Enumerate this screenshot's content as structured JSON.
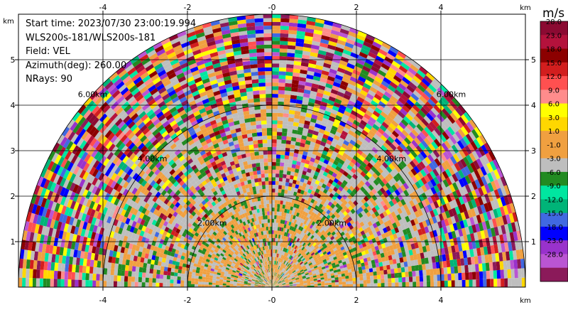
{
  "info": {
    "start_time": "Start time: 2023/07/30 23:00:19.994",
    "instrument": "WLS200s-181/WLS200s-181",
    "field": "Field: VEL",
    "azimuth": "Azimuth(deg): 260.00",
    "nrays": "NRays: 90"
  },
  "colorbar": {
    "unit": "m/s",
    "levels": [
      "28.0",
      "23.0",
      "18.0",
      "15.0",
      "12.0",
      "9.0",
      "6.0",
      "3.0",
      "1.0",
      "-1.0",
      "-3.0",
      "-6.0",
      "-9.0",
      "-12.0",
      "-15.0",
      "-18.0",
      "-23.0",
      "-28.0"
    ],
    "colors": [
      "#8b0a32",
      "#b4123c",
      "#8c0000",
      "#d21e1e",
      "#ff5050",
      "#ff8c8c",
      "#ffff00",
      "#ffd700",
      "#f0a040",
      "#f0a040",
      "#bebebe",
      "#228b22",
      "#00e6a0",
      "#00b478",
      "#4169e1",
      "#0000ff",
      "#9932cc",
      "#ba55d3",
      "#8b1a5a"
    ]
  },
  "chart_data": {
    "type": "heatmap",
    "field": "VEL",
    "unit": "m/s",
    "xlim": [
      -6,
      6
    ],
    "ylim": [
      0,
      6
    ],
    "x_unit": "km",
    "y_unit": "km",
    "x_ticks": [
      "-4",
      "-2",
      "-0",
      "2",
      "4"
    ],
    "x_tick_values": [
      -4,
      -2,
      0,
      2,
      4
    ],
    "y_ticks": [
      "1",
      "2",
      "3",
      "4",
      "5"
    ],
    "y_tick_values": [
      1,
      2,
      3,
      4,
      5
    ],
    "range_rings": [
      {
        "r_km": 2,
        "label": "2.00km"
      },
      {
        "r_km": 4,
        "label": "4.00km"
      },
      {
        "r_km": 6,
        "label": "6.00km"
      }
    ],
    "max_range_km": 6,
    "grid": true,
    "colorbar_levels": [
      28,
      23,
      18,
      15,
      12,
      9,
      6,
      3,
      1,
      -1,
      -3,
      -6,
      -9,
      -12,
      -15,
      -18,
      -23,
      -28
    ]
  }
}
